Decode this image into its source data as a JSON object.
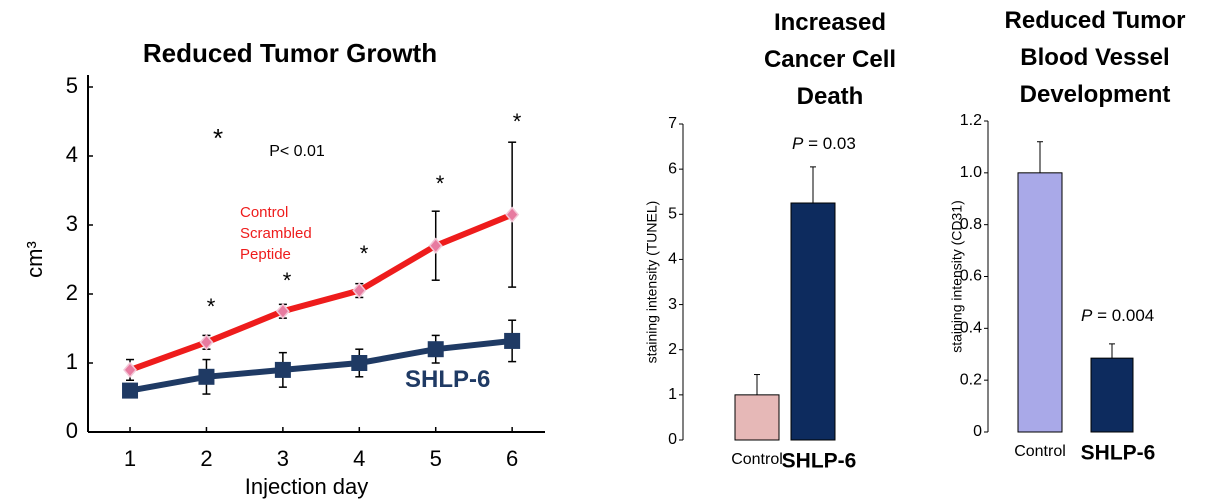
{
  "chart_data": [
    {
      "type": "line",
      "title": "Reduced Tumor Growth",
      "xlabel": "Injection day",
      "ylabel": "cm³",
      "x": [
        1,
        2,
        3,
        4,
        5,
        6
      ],
      "xlim": [
        0.45,
        6.43
      ],
      "xticks": [
        1,
        2,
        3,
        4,
        5,
        6
      ],
      "ylim": [
        0,
        5
      ],
      "yticks": [
        0,
        1,
        2,
        3,
        4,
        5
      ],
      "series": [
        {
          "name": "Control Scrambled Peptide",
          "color": "#ee1c1c",
          "values": [
            0.9,
            1.3,
            1.75,
            2.05,
            2.7,
            3.15
          ],
          "errors": [
            0.15,
            0.1,
            0.1,
            0.1,
            0.5,
            1.05
          ]
        },
        {
          "name": "SHLP-6",
          "color": "#1f3a64",
          "values": [
            0.6,
            0.8,
            0.9,
            1.0,
            1.2,
            1.32
          ],
          "errors": [
            0.1,
            0.25,
            0.25,
            0.2,
            0.2,
            0.3
          ]
        }
      ],
      "annotations": [
        "*",
        "P< 0.01",
        "*",
        "*",
        "*",
        "*",
        "*"
      ]
    },
    {
      "type": "bar",
      "title": "Increased Cancer Cell Death",
      "ylabel": "staining intensity (TUNEL)",
      "categories": [
        "Control",
        "SHLP-6"
      ],
      "values": [
        1.0,
        5.25
      ],
      "errors": [
        0.45,
        0.8
      ],
      "colors": [
        "#e6b8b7",
        "#0d2b5e"
      ],
      "ylim": [
        0,
        7
      ],
      "yticks": [
        0,
        1,
        2,
        3,
        4,
        5,
        6,
        7
      ],
      "annotations": [
        "P = 0.03"
      ]
    },
    {
      "type": "bar",
      "title": "Reduced Tumor Blood Vessel Development",
      "ylabel": "staining intensity (CD31)",
      "categories": [
        "Control",
        "SHLP-6"
      ],
      "values": [
        1.0,
        0.285
      ],
      "errors": [
        0.12,
        0.055
      ],
      "colors": [
        "#a9a9e8",
        "#0d2b5e"
      ],
      "ylim": [
        0,
        1.2
      ],
      "yticks": [
        0,
        0.2,
        0.4,
        0.6,
        0.8,
        {
          "value": 1,
          "label": "1.0"
        },
        1.2
      ],
      "annotations": [
        "P = 0.004"
      ]
    }
  ]
}
